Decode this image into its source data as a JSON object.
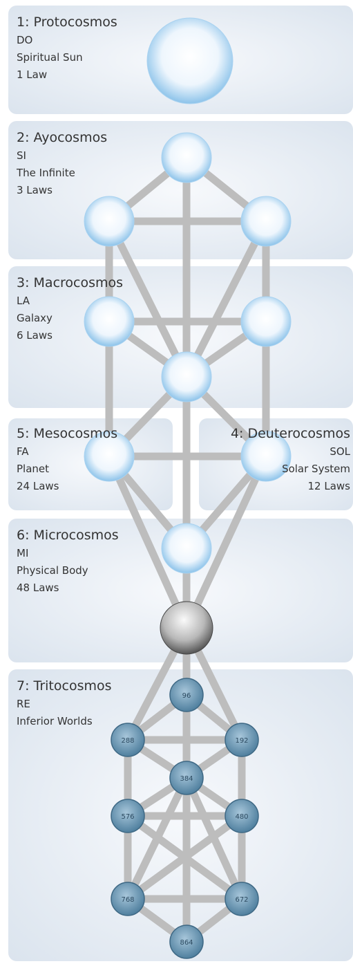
{
  "panels": [
    {
      "title": "1: Protocosmos",
      "lines": [
        "DO",
        "Spiritual Sun",
        "1 Law"
      ]
    },
    {
      "title": "2: Ayocosmos",
      "lines": [
        "SI",
        "The Infinite",
        "3 Laws"
      ]
    },
    {
      "title": "3: Macrocosmos",
      "lines": [
        "LA",
        "Galaxy",
        "6 Laws"
      ]
    },
    {
      "title": "5: Mesocosmos",
      "lines": [
        "FA",
        "Planet",
        "24 Laws"
      ]
    },
    {
      "title": "4: Deuterocosmos",
      "lines": [
        "SOL",
        "Solar System",
        "12 Laws"
      ]
    },
    {
      "title": "6: Microcosmos",
      "lines": [
        "MI",
        "Physical Body",
        "48 Laws"
      ]
    },
    {
      "title": "7: Tritocosmos",
      "lines": [
        "RE",
        "Inferior Worlds"
      ]
    }
  ],
  "tritocosmos_nodes": [
    "96",
    "288",
    "192",
    "384",
    "576",
    "480",
    "768",
    "672",
    "864"
  ]
}
